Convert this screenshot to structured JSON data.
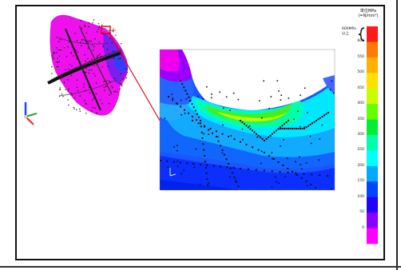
{
  "legend": {
    "title_line1": "単位MPa",
    "title_line2": "(=N/mm²)",
    "top_caption_line1": "600MPa",
    "top_caption_line2": "以上",
    "ticks": [
      "600",
      "550",
      "500",
      "450",
      "400",
      "350",
      "300",
      "250",
      "200",
      "150",
      "100",
      "50",
      "0"
    ],
    "colors": [
      "#ff1a1a",
      "#ff7a00",
      "#ffb000",
      "#ffe000",
      "#c8ff00",
      "#66ff00",
      "#00ee33",
      "#00ffaa",
      "#00ffff",
      "#00aaff",
      "#0044ff",
      "#2200ff",
      "#8800ff",
      "#ff00ff"
    ]
  },
  "colors": {
    "highlight_box": "#dd0000",
    "leader_line": "#dd0000",
    "axis_triad": [
      "#2244ff",
      "#22aa22",
      "#ff2222"
    ]
  }
}
